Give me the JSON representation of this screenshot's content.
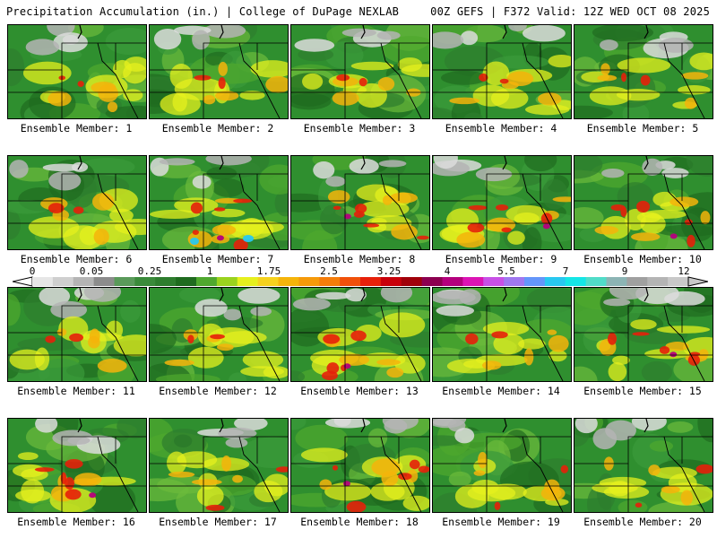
{
  "header": {
    "title_left": "Precipitation Accumulation (in.) | College of DuPage NEXLAB",
    "title_right": "00Z GEFS | F372 Valid: 12Z WED OCT 08 2025"
  },
  "colors": {
    "scale": [
      "#e6e6e6",
      "#cfcfcf",
      "#b4b4b4",
      "#8c8c8c",
      "#5a9a5a",
      "#3a8a3a",
      "#2e7d2e",
      "#1f6b1f",
      "#4fa82e",
      "#9ad21e",
      "#e6f01e",
      "#f5d21e",
      "#f5b40a",
      "#f59a0a",
      "#f57d0a",
      "#f0500a",
      "#e6200a",
      "#c8000a",
      "#a0000a",
      "#8c0050",
      "#b4007d",
      "#dc14b4",
      "#c850e6",
      "#a078f0",
      "#6496fa",
      "#28c8f0",
      "#14e6e6",
      "#50dcc8",
      "#8cb4b4",
      "#a0a0a0",
      "#b4b4b4",
      "#c8c8c8"
    ]
  },
  "legend": {
    "ticks": [
      "0",
      "0.05",
      "0.25",
      "1",
      "1.75",
      "2.5",
      "3.25",
      "4",
      "5.5",
      "7",
      "9",
      "12"
    ]
  },
  "panels": [
    {
      "label": "Ensemble Member: 1"
    },
    {
      "label": "Ensemble Member: 2"
    },
    {
      "label": "Ensemble Member: 3"
    },
    {
      "label": "Ensemble Member: 4"
    },
    {
      "label": "Ensemble Member: 5"
    },
    {
      "label": "Ensemble Member: 6"
    },
    {
      "label": "Ensemble Member: 7"
    },
    {
      "label": "Ensemble Member: 8"
    },
    {
      "label": "Ensemble Member: 9"
    },
    {
      "label": "Ensemble Member: 10"
    },
    {
      "label": "Ensemble Member: 11"
    },
    {
      "label": "Ensemble Member: 12"
    },
    {
      "label": "Ensemble Member: 13"
    },
    {
      "label": "Ensemble Member: 14"
    },
    {
      "label": "Ensemble Member: 15"
    },
    {
      "label": "Ensemble Member: 16"
    },
    {
      "label": "Ensemble Member: 17"
    },
    {
      "label": "Ensemble Member: 18"
    },
    {
      "label": "Ensemble Member: 19"
    },
    {
      "label": "Ensemble Member: 20"
    }
  ]
}
